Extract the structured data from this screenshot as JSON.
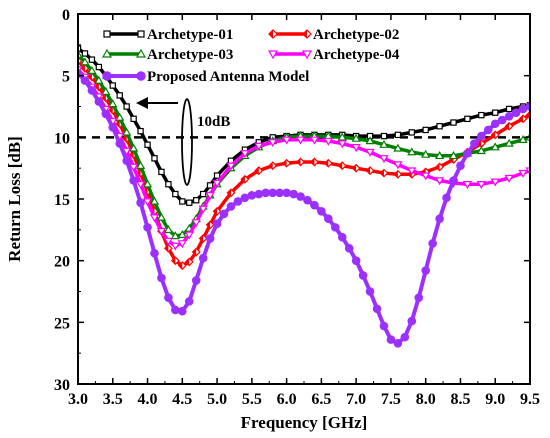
{
  "chart_data": {
    "type": "line",
    "title": "",
    "xlabel": "Frequency [GHz]",
    "ylabel": "Return Loss [dB]",
    "xlim": [
      3.0,
      9.5
    ],
    "ylim": [
      30,
      0
    ],
    "y_inverted": true,
    "x_ticks": [
      "3.0",
      "3.5",
      "4.0",
      "4.5",
      "5.0",
      "5.5",
      "6.0",
      "6.5",
      "7.0",
      "7.5",
      "8.0",
      "8.5",
      "9.0",
      "9.5"
    ],
    "y_ticks": [
      "0",
      "5",
      "10",
      "15",
      "20",
      "25",
      "30"
    ],
    "grid": false,
    "legend_position": "top",
    "reference_line": {
      "y": 10,
      "style": "dashed",
      "color": "#000000"
    },
    "annotation": {
      "text": "10dB",
      "arrow_direction": "left"
    },
    "series": [
      {
        "name": "Archetype-01",
        "color": "#000000",
        "marker": "square",
        "marker_filled": false,
        "x": [
          3.0,
          3.1,
          3.2,
          3.3,
          3.4,
          3.5,
          3.6,
          3.7,
          3.8,
          3.9,
          4.0,
          4.1,
          4.2,
          4.3,
          4.4,
          4.5,
          4.6,
          4.7,
          4.8,
          4.9,
          5.0,
          5.2,
          5.4,
          5.6,
          5.8,
          6.0,
          6.2,
          6.4,
          6.6,
          6.8,
          7.0,
          7.2,
          7.4,
          7.6,
          7.8,
          8.0,
          8.2,
          8.4,
          8.6,
          8.8,
          9.0,
          9.2,
          9.4,
          9.5
        ],
        "y": [
          2.8,
          3.2,
          3.7,
          4.3,
          5.0,
          5.8,
          6.6,
          7.5,
          8.5,
          9.5,
          10.6,
          11.7,
          12.8,
          13.8,
          14.6,
          15.2,
          15.3,
          15.1,
          14.6,
          13.9,
          13.1,
          11.9,
          11.0,
          10.4,
          10.0,
          9.9,
          9.8,
          9.8,
          9.8,
          9.8,
          9.9,
          9.9,
          9.9,
          9.8,
          9.6,
          9.4,
          9.1,
          8.8,
          8.5,
          8.2,
          8.0,
          7.7,
          7.5,
          7.4
        ]
      },
      {
        "name": "Archetype-02",
        "color": "#ff0000",
        "marker": "diamond",
        "marker_filled": false,
        "x": [
          3.0,
          3.1,
          3.2,
          3.3,
          3.4,
          3.5,
          3.6,
          3.7,
          3.8,
          3.9,
          4.0,
          4.1,
          4.2,
          4.3,
          4.4,
          4.5,
          4.6,
          4.7,
          4.8,
          4.9,
          5.0,
          5.2,
          5.4,
          5.6,
          5.8,
          6.0,
          6.2,
          6.4,
          6.6,
          6.8,
          7.0,
          7.2,
          7.4,
          7.6,
          7.8,
          8.0,
          8.2,
          8.4,
          8.6,
          8.8,
          9.0,
          9.2,
          9.4,
          9.5
        ],
        "y": [
          3.8,
          4.4,
          5.1,
          5.9,
          6.8,
          7.8,
          8.9,
          10.1,
          11.4,
          12.9,
          14.4,
          16.0,
          17.6,
          19.0,
          20.0,
          20.4,
          20.1,
          19.3,
          18.2,
          17.1,
          16.0,
          14.5,
          13.4,
          12.7,
          12.3,
          12.1,
          12.0,
          12.0,
          12.1,
          12.3,
          12.5,
          12.7,
          12.9,
          13.0,
          13.0,
          12.8,
          12.4,
          11.8,
          11.2,
          10.5,
          9.8,
          9.1,
          8.5,
          8.2
        ]
      },
      {
        "name": "Archetype-03",
        "color": "#008000",
        "marker": "triangle-up",
        "marker_filled": false,
        "x": [
          3.0,
          3.1,
          3.2,
          3.3,
          3.4,
          3.5,
          3.6,
          3.7,
          3.8,
          3.9,
          4.0,
          4.1,
          4.2,
          4.3,
          4.4,
          4.5,
          4.6,
          4.7,
          4.8,
          4.9,
          5.0,
          5.2,
          5.4,
          5.6,
          5.8,
          6.0,
          6.2,
          6.4,
          6.6,
          6.8,
          7.0,
          7.2,
          7.4,
          7.6,
          7.8,
          8.0,
          8.2,
          8.4,
          8.6,
          8.8,
          9.0,
          9.2,
          9.4,
          9.5
        ],
        "y": [
          3.3,
          3.9,
          4.6,
          5.4,
          6.3,
          7.3,
          8.4,
          9.6,
          10.9,
          12.3,
          13.8,
          15.2,
          16.5,
          17.5,
          18.0,
          17.9,
          17.4,
          16.6,
          15.6,
          14.7,
          13.8,
          12.5,
          11.5,
          10.8,
          10.3,
          10.0,
          9.9,
          9.9,
          9.9,
          10.0,
          10.1,
          10.3,
          10.6,
          10.9,
          11.2,
          11.4,
          11.5,
          11.5,
          11.3,
          11.1,
          10.8,
          10.5,
          10.2,
          10.0
        ]
      },
      {
        "name": "Archetype-04",
        "color": "#ff00ff",
        "marker": "triangle-down",
        "marker_filled": false,
        "x": [
          3.0,
          3.1,
          3.2,
          3.3,
          3.4,
          3.5,
          3.6,
          3.7,
          3.8,
          3.9,
          4.0,
          4.1,
          4.2,
          4.3,
          4.4,
          4.5,
          4.6,
          4.7,
          4.8,
          4.9,
          5.0,
          5.2,
          5.4,
          5.6,
          5.8,
          6.0,
          6.2,
          6.4,
          6.6,
          6.8,
          7.0,
          7.2,
          7.4,
          7.6,
          7.8,
          8.0,
          8.2,
          8.4,
          8.6,
          8.8,
          9.0,
          9.2,
          9.4,
          9.5
        ],
        "y": [
          4.5,
          5.1,
          5.9,
          6.7,
          7.7,
          8.7,
          9.9,
          11.1,
          12.4,
          13.8,
          15.2,
          16.5,
          17.6,
          18.4,
          18.8,
          18.6,
          17.9,
          16.9,
          15.8,
          14.7,
          13.7,
          12.3,
          11.3,
          10.7,
          10.4,
          10.2,
          10.2,
          10.2,
          10.3,
          10.5,
          10.8,
          11.2,
          11.7,
          12.2,
          12.7,
          13.1,
          13.5,
          13.7,
          13.8,
          13.8,
          13.6,
          13.3,
          12.9,
          12.7
        ]
      },
      {
        "name": "Proposed Antenna Model",
        "color": "#9b30ff",
        "marker": "circle",
        "marker_filled": true,
        "x": [
          3.0,
          3.1,
          3.2,
          3.3,
          3.4,
          3.5,
          3.6,
          3.7,
          3.8,
          3.9,
          4.0,
          4.1,
          4.2,
          4.3,
          4.4,
          4.5,
          4.6,
          4.7,
          4.8,
          4.9,
          5.0,
          5.1,
          5.2,
          5.3,
          5.4,
          5.5,
          5.6,
          5.7,
          5.8,
          5.9,
          6.0,
          6.1,
          6.2,
          6.3,
          6.4,
          6.5,
          6.6,
          6.7,
          6.8,
          6.9,
          7.0,
          7.1,
          7.2,
          7.3,
          7.4,
          7.5,
          7.6,
          7.7,
          7.8,
          7.9,
          8.0,
          8.1,
          8.2,
          8.3,
          8.4,
          8.5,
          8.6,
          8.7,
          8.8,
          8.9,
          9.0,
          9.1,
          9.2,
          9.3,
          9.4,
          9.5
        ],
        "y": [
          4.8,
          5.4,
          6.2,
          7.1,
          8.1,
          9.2,
          10.5,
          11.9,
          13.5,
          15.3,
          17.3,
          19.4,
          21.4,
          23.0,
          24.0,
          24.1,
          23.3,
          21.6,
          19.8,
          18.2,
          17.0,
          16.2,
          15.6,
          15.2,
          14.9,
          14.7,
          14.6,
          14.5,
          14.5,
          14.5,
          14.5,
          14.6,
          14.8,
          15.1,
          15.5,
          16.0,
          16.6,
          17.3,
          18.1,
          19.0,
          20.0,
          21.2,
          22.5,
          23.9,
          25.3,
          26.4,
          26.7,
          26.2,
          24.9,
          23.0,
          20.8,
          18.6,
          16.6,
          14.9,
          13.5,
          12.3,
          11.3,
          10.5,
          9.9,
          9.4,
          8.9,
          8.6,
          8.3,
          8.0,
          7.7,
          7.5
        ]
      }
    ]
  }
}
